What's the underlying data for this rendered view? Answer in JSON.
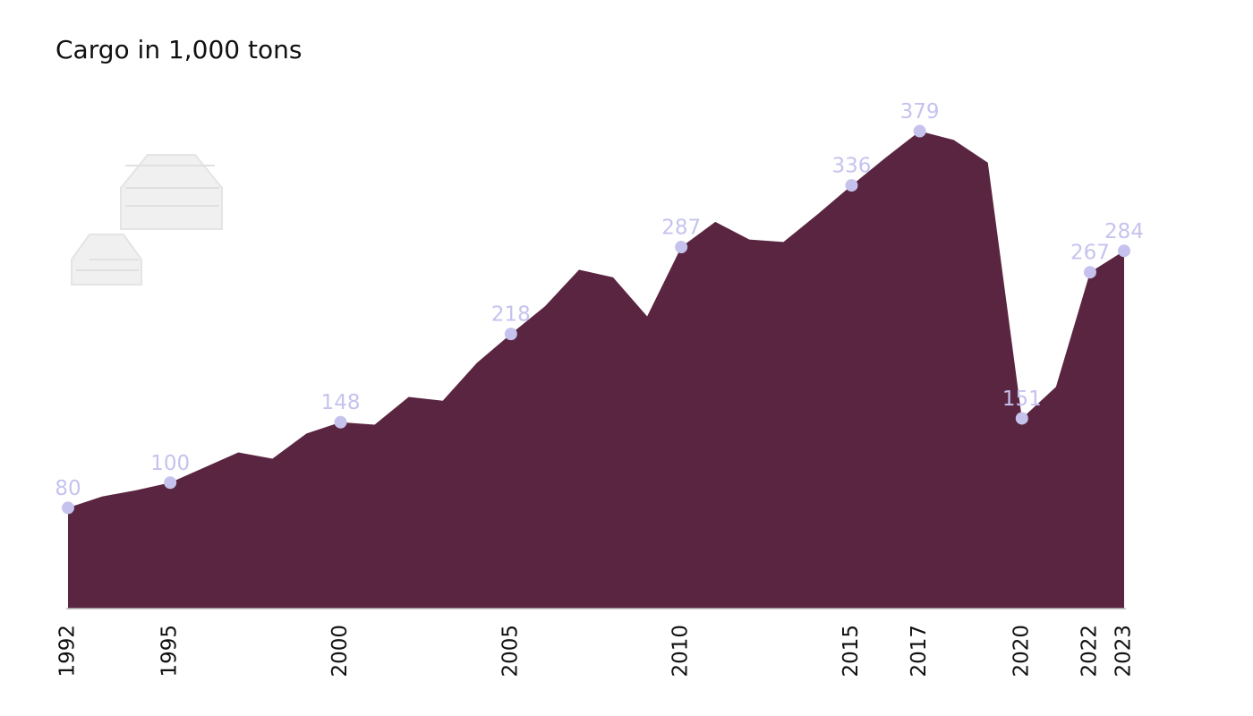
{
  "chart_data": {
    "type": "area",
    "title": "Cargo in 1,000 tons",
    "x": [
      1992,
      1993,
      1994,
      1995,
      1996,
      1997,
      1998,
      1999,
      2000,
      2001,
      2002,
      2003,
      2004,
      2005,
      2006,
      2007,
      2008,
      2009,
      2010,
      2011,
      2012,
      2013,
      2014,
      2015,
      2016,
      2017,
      2018,
      2019,
      2020,
      2021,
      2022,
      2023
    ],
    "values": [
      80,
      89,
      94,
      100,
      112,
      124,
      119,
      139,
      148,
      146,
      168,
      165,
      195,
      218,
      240,
      269,
      263,
      232,
      287,
      307,
      293,
      291,
      313,
      336,
      358,
      379,
      372,
      354,
      151,
      176,
      267,
      284
    ],
    "color": "#5a2540",
    "marker_color": "#c5c3ee",
    "xlim": [
      1992,
      2023
    ],
    "xticks": [
      1992,
      1995,
      2000,
      2005,
      2010,
      2015,
      2017,
      2020,
      2022,
      2023
    ],
    "ylim": [
      0,
      400
    ]
  }
}
